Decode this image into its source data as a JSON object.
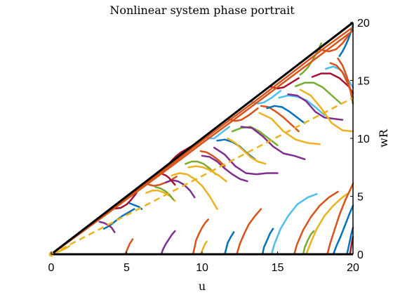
{
  "chart_data": {
    "type": "line",
    "title": "Nonlinear system phase portrait",
    "xlabel": "u",
    "ylabel": "wR",
    "xlim": [
      0,
      20
    ],
    "ylim": [
      0,
      20
    ],
    "x_ticks": [
      0,
      5,
      10,
      15,
      20
    ],
    "y_ticks": [
      0,
      5,
      10,
      15,
      20
    ],
    "y_axis_location": "right",
    "grid": false,
    "colors": [
      "#0072BD",
      "#D95319",
      "#EDB120",
      "#7E2F8E",
      "#77AC30",
      "#4DBEEE",
      "#A2142F"
    ],
    "boundary": {
      "color": "#000000",
      "segments": [
        {
          "x": [
            0,
            20
          ],
          "y": [
            0,
            20
          ]
        },
        {
          "x": [
            0,
            20
          ],
          "y": [
            0,
            0
          ]
        }
      ]
    },
    "reference_line": {
      "color": "#EDB120",
      "style": "dashed",
      "x": [
        0,
        20
      ],
      "y": [
        0,
        13.5
      ]
    },
    "trajectories": [
      {
        "c": 6,
        "x": [
          3.9,
          4.0,
          4.3,
          4.6,
          5.0,
          5.3,
          5.6,
          5.9
        ],
        "y": [
          3.9,
          3.92,
          3.95,
          4.0,
          4.3,
          4.7,
          5.2,
          5.9
        ]
      },
      {
        "c": 1,
        "x": [
          6.2,
          6.3,
          6.5,
          6.8,
          7.2,
          7.8,
          8.3
        ],
        "y": [
          6.2,
          6.1,
          6.0,
          5.9,
          6.0,
          6.3,
          6.7
        ]
      },
      {
        "c": 6,
        "x": [
          7.8,
          8.0,
          8.3,
          8.6,
          9.0,
          9.4
        ],
        "y": [
          7.8,
          8.1,
          8.5,
          8.8,
          9.1,
          9.4
        ]
      },
      {
        "c": 5,
        "x": [
          10.2,
          10.3,
          10.5,
          10.8,
          11.2,
          11.8
        ],
        "y": [
          10.2,
          10.1,
          10.0,
          10.0,
          10.4,
          11.0
        ]
      },
      {
        "c": 1,
        "x": [
          11.7,
          11.9,
          12.2,
          12.6,
          13.1,
          13.7
        ],
        "y": [
          11.7,
          11.6,
          11.5,
          11.6,
          12.0,
          12.6
        ]
      },
      {
        "c": 5,
        "x": [
          13.2,
          13.4,
          13.7,
          14.1,
          14.6,
          15.2
        ],
        "y": [
          13.2,
          13.1,
          13.0,
          13.1,
          13.5,
          14.1
        ]
      },
      {
        "c": 6,
        "x": [
          14.5,
          14.7,
          15.0,
          15.4,
          15.9,
          16.4
        ],
        "y": [
          14.5,
          14.4,
          14.3,
          14.4,
          14.8,
          15.2
        ]
      },
      {
        "c": 4,
        "x": [
          16.5,
          16.7,
          17.0,
          17.3,
          17.6,
          17.9
        ],
        "y": [
          15.5,
          15.7,
          16.1,
          16.7,
          17.4,
          18.2
        ]
      },
      {
        "c": 1,
        "x": [
          17.7,
          18.0,
          18.4,
          18.9,
          19.3,
          19.7
        ],
        "y": [
          17.7,
          17.6,
          17.5,
          17.7,
          18.2,
          18.9
        ]
      },
      {
        "c": 0,
        "x": [
          19.1,
          19.3,
          19.5,
          19.7,
          19.9,
          20.0
        ],
        "y": [
          17.1,
          17.5,
          18.0,
          18.6,
          19.3,
          19.8
        ]
      },
      {
        "c": 0,
        "x": [
          3.5,
          3.9,
          4.3,
          4.7,
          5.1,
          5.5
        ],
        "y": [
          2.2,
          2.5,
          2.9,
          3.3,
          3.6,
          3.9
        ]
      },
      {
        "c": 3,
        "x": [
          3.2,
          3.5,
          3.8,
          4.0,
          4.2
        ],
        "y": [
          2.8,
          2.7,
          2.5,
          2.3,
          1.9
        ]
      },
      {
        "c": 0,
        "x": [
          5.2,
          5.4,
          5.6,
          5.8,
          6.0
        ],
        "y": [
          4.4,
          4.3,
          4.2,
          4.1,
          3.9
        ]
      },
      {
        "c": 2,
        "x": [
          6.3,
          6.7,
          7.1,
          7.5,
          7.9,
          8.2
        ],
        "y": [
          5.3,
          5.5,
          5.5,
          5.3,
          5.0,
          4.6
        ]
      },
      {
        "c": 4,
        "x": [
          6.9,
          7.2,
          7.5,
          7.8,
          8.1
        ],
        "y": [
          5.8,
          5.7,
          5.5,
          5.2,
          4.7
        ]
      },
      {
        "c": 3,
        "x": [
          7.6,
          8.0,
          8.4,
          8.8,
          9.2,
          9.5
        ],
        "y": [
          6.2,
          6.4,
          6.3,
          6.0,
          5.5,
          4.9
        ]
      },
      {
        "c": 2,
        "x": [
          8.0,
          8.5,
          9.0,
          9.5,
          10.0,
          10.5,
          11.0
        ],
        "y": [
          6.8,
          7.0,
          6.9,
          6.5,
          5.9,
          5.0,
          3.9
        ]
      },
      {
        "c": 6,
        "x": [
          7.4,
          7.6,
          7.8,
          8.0,
          8.2
        ],
        "y": [
          6.9,
          6.8,
          6.6,
          6.3,
          6.0
        ]
      },
      {
        "c": 4,
        "x": [
          8.9,
          9.3,
          9.7,
          10.1,
          10.5,
          10.9
        ],
        "y": [
          7.8,
          8.0,
          8.0,
          7.8,
          7.4,
          6.9
        ]
      },
      {
        "c": 3,
        "x": [
          10.0,
          10.5,
          11.0,
          11.5,
          12.0,
          12.5,
          13.0
        ],
        "y": [
          8.5,
          8.4,
          8.0,
          7.4,
          6.9,
          6.5,
          6.3
        ]
      },
      {
        "c": 2,
        "x": [
          9.1,
          9.6,
          10.1,
          10.6,
          11.1,
          11.6
        ],
        "y": [
          7.5,
          7.6,
          7.5,
          7.2,
          6.8,
          6.3
        ]
      },
      {
        "c": 3,
        "x": [
          10.8,
          11.5,
          12.2,
          12.9,
          13.6,
          14.3,
          15.0
        ],
        "y": [
          9.2,
          8.6,
          7.6,
          7.0,
          6.9,
          7.0,
          7.0
        ]
      },
      {
        "c": 1,
        "x": [
          9.9,
          10.3,
          10.7,
          11.1,
          11.5
        ],
        "y": [
          8.9,
          8.8,
          8.5,
          8.1,
          7.6
        ]
      },
      {
        "c": 0,
        "x": [
          11.0,
          11.5,
          12.0,
          12.5,
          13.0,
          13.5
        ],
        "y": [
          9.8,
          9.9,
          9.7,
          9.3,
          8.7,
          8.2
        ]
      },
      {
        "c": 4,
        "x": [
          12.0,
          12.6,
          13.2,
          13.8,
          14.4,
          15.0
        ],
        "y": [
          10.6,
          10.9,
          11.0,
          10.6,
          10.0,
          9.4
        ]
      },
      {
        "c": 3,
        "x": [
          12.6,
          13.3,
          14.0,
          14.7,
          15.4,
          16.1,
          16.8
        ],
        "y": [
          11.0,
          10.9,
          10.2,
          9.3,
          8.7,
          8.5,
          8.2
        ]
      },
      {
        "c": 2,
        "x": [
          11.7,
          12.2,
          12.7,
          13.2,
          13.7,
          14.2
        ],
        "y": [
          10.0,
          9.6,
          9.0,
          8.4,
          8.0,
          7.8
        ]
      },
      {
        "c": 2,
        "x": [
          13.8,
          14.6,
          15.4,
          16.2,
          17.0,
          17.8
        ],
        "y": [
          12.2,
          11.7,
          10.6,
          9.9,
          9.6,
          9.5
        ]
      },
      {
        "c": 1,
        "x": [
          13.9,
          14.4,
          14.9,
          15.4,
          15.9,
          16.4
        ],
        "y": [
          12.8,
          12.7,
          12.3,
          11.8,
          11.2,
          10.6
        ]
      },
      {
        "c": 0,
        "x": [
          14.3,
          14.8,
          15.3,
          15.8,
          16.3,
          16.8
        ],
        "y": [
          12.6,
          12.8,
          12.7,
          12.3,
          11.8,
          11.3
        ]
      },
      {
        "c": 5,
        "x": [
          15.1,
          15.7,
          16.3,
          16.9,
          17.5,
          18.1
        ],
        "y": [
          13.5,
          13.7,
          13.6,
          13.3,
          12.7,
          12.0
        ]
      },
      {
        "c": 3,
        "x": [
          15.7,
          16.3,
          16.9,
          17.5,
          18.1,
          18.7,
          19.3
        ],
        "y": [
          13.8,
          13.7,
          13.2,
          12.3,
          11.8,
          11.7,
          11.6
        ]
      },
      {
        "c": 4,
        "x": [
          16.2,
          16.8,
          17.4,
          18.0,
          18.6,
          19.2
        ],
        "y": [
          14.5,
          14.8,
          14.8,
          14.4,
          13.7,
          13.0
        ]
      },
      {
        "c": 2,
        "x": [
          16.5,
          17.2,
          17.9,
          18.6,
          19.3,
          20.0
        ],
        "y": [
          14.2,
          13.7,
          12.6,
          11.3,
          10.7,
          10.6
        ]
      },
      {
        "c": 6,
        "x": [
          17.3,
          17.9,
          18.5,
          19.1,
          19.7,
          20.0
        ],
        "y": [
          15.3,
          15.6,
          15.6,
          15.2,
          14.5,
          13.9
        ]
      },
      {
        "c": 5,
        "x": [
          18.2,
          18.7,
          19.2,
          19.6,
          20.0
        ],
        "y": [
          16.0,
          16.2,
          15.9,
          15.2,
          14.4
        ]
      },
      {
        "c": 1,
        "x": [
          18.5,
          18.9,
          19.3,
          19.7,
          20.0
        ],
        "y": [
          16.5,
          16.3,
          15.7,
          14.6,
          13.5
        ]
      },
      {
        "c": 1,
        "x": [
          19.0,
          19.3,
          19.6,
          19.8,
          20.0
        ],
        "y": [
          16.9,
          16.3,
          15.3,
          14.3,
          13.0
        ]
      },
      {
        "c": 1,
        "x": [
          4.9,
          5.0,
          5.1,
          5.2,
          5.3,
          5.4
        ],
        "y": [
          0,
          0.3,
          0.6,
          0.9,
          1.1,
          1.3
        ]
      },
      {
        "c": 3,
        "x": [
          7.3,
          7.4,
          7.6,
          7.8,
          8.0,
          8.2
        ],
        "y": [
          0,
          0.4,
          0.9,
          1.3,
          1.7,
          2.0
        ]
      },
      {
        "c": 1,
        "x": [
          9.4,
          9.5,
          9.6,
          9.8,
          10.0,
          10.2,
          10.4
        ],
        "y": [
          0,
          0.6,
          1.2,
          1.8,
          2.3,
          2.7,
          3.0
        ]
      },
      {
        "c": 2,
        "x": [
          9.9,
          10.0,
          10.1,
          10.2,
          10.3
        ],
        "y": [
          0,
          0.3,
          0.6,
          0.9,
          1.1
        ]
      },
      {
        "c": 0,
        "x": [
          11.5,
          11.6,
          11.7,
          11.9,
          12.1
        ],
        "y": [
          0,
          0.5,
          1.0,
          1.5,
          1.9
        ]
      },
      {
        "c": 1,
        "x": [
          12.3,
          12.5,
          12.8,
          13.1,
          13.5,
          13.9
        ],
        "y": [
          0,
          0.9,
          1.8,
          2.6,
          3.3,
          3.9
        ]
      },
      {
        "c": 0,
        "x": [
          14.0,
          14.1,
          14.3,
          14.5,
          14.7
        ],
        "y": [
          0,
          0.6,
          1.2,
          1.8,
          2.2
        ]
      },
      {
        "c": 5,
        "x": [
          14.6,
          14.8,
          15.2,
          15.7,
          16.3,
          17.0,
          17.6
        ],
        "y": [
          0,
          0.9,
          2.2,
          3.3,
          4.3,
          4.9,
          5.2
        ]
      },
      {
        "c": 1,
        "x": [
          16.1,
          16.3,
          16.7,
          17.2,
          17.8,
          18.4,
          19.0
        ],
        "y": [
          0,
          0.9,
          2.1,
          3.2,
          4.2,
          4.9,
          5.4
        ]
      },
      {
        "c": 4,
        "x": [
          16.7,
          16.8,
          17.0,
          17.2,
          17.4
        ],
        "y": [
          0,
          0.6,
          1.2,
          1.7,
          2.0
        ]
      },
      {
        "c": 2,
        "x": [
          16.9,
          17.2,
          17.6,
          18.1,
          18.7,
          19.2,
          19.6
        ],
        "y": [
          0,
          1.0,
          2.2,
          3.3,
          4.2,
          4.8,
          5.2
        ]
      },
      {
        "c": 1,
        "x": [
          18.3,
          18.5,
          18.8,
          19.1,
          19.5,
          19.9,
          20.0
        ],
        "y": [
          0,
          1.0,
          2.2,
          3.4,
          4.7,
          5.8,
          6.1
        ]
      },
      {
        "c": 0,
        "x": [
          18.7,
          18.9,
          19.2,
          19.5,
          19.8,
          20.0
        ],
        "y": [
          0,
          0.7,
          1.6,
          2.6,
          3.6,
          4.2
        ]
      },
      {
        "c": 0,
        "x": [
          19.6,
          19.7,
          19.8,
          19.9,
          20.0
        ],
        "y": [
          0,
          0.6,
          1.2,
          1.8,
          2.3
        ]
      },
      {
        "c": 6,
        "x": [
          19.8,
          19.85,
          19.9,
          19.95,
          20.0
        ],
        "y": [
          0,
          0.4,
          0.8,
          1.2,
          1.5
        ]
      },
      {
        "c": 1,
        "x": [
          0,
          2,
          4,
          6,
          8,
          10,
          12,
          14,
          16,
          18,
          20
        ],
        "y": [
          0,
          1.95,
          3.9,
          5.85,
          7.8,
          9.8,
          11.75,
          13.7,
          15.7,
          17.7,
          19.6
        ]
      },
      {
        "c": 1,
        "x": [
          0,
          2,
          4,
          6,
          8,
          10,
          12,
          14,
          16,
          18,
          20
        ],
        "y": [
          0,
          1.88,
          3.78,
          5.7,
          7.62,
          9.58,
          11.5,
          13.45,
          15.4,
          17.35,
          19.3
        ]
      },
      {
        "c": 2,
        "x": [
          0,
          0.4,
          0.8,
          1.2
        ],
        "y": [
          0,
          0.2,
          0.4,
          0.7
        ]
      }
    ]
  }
}
